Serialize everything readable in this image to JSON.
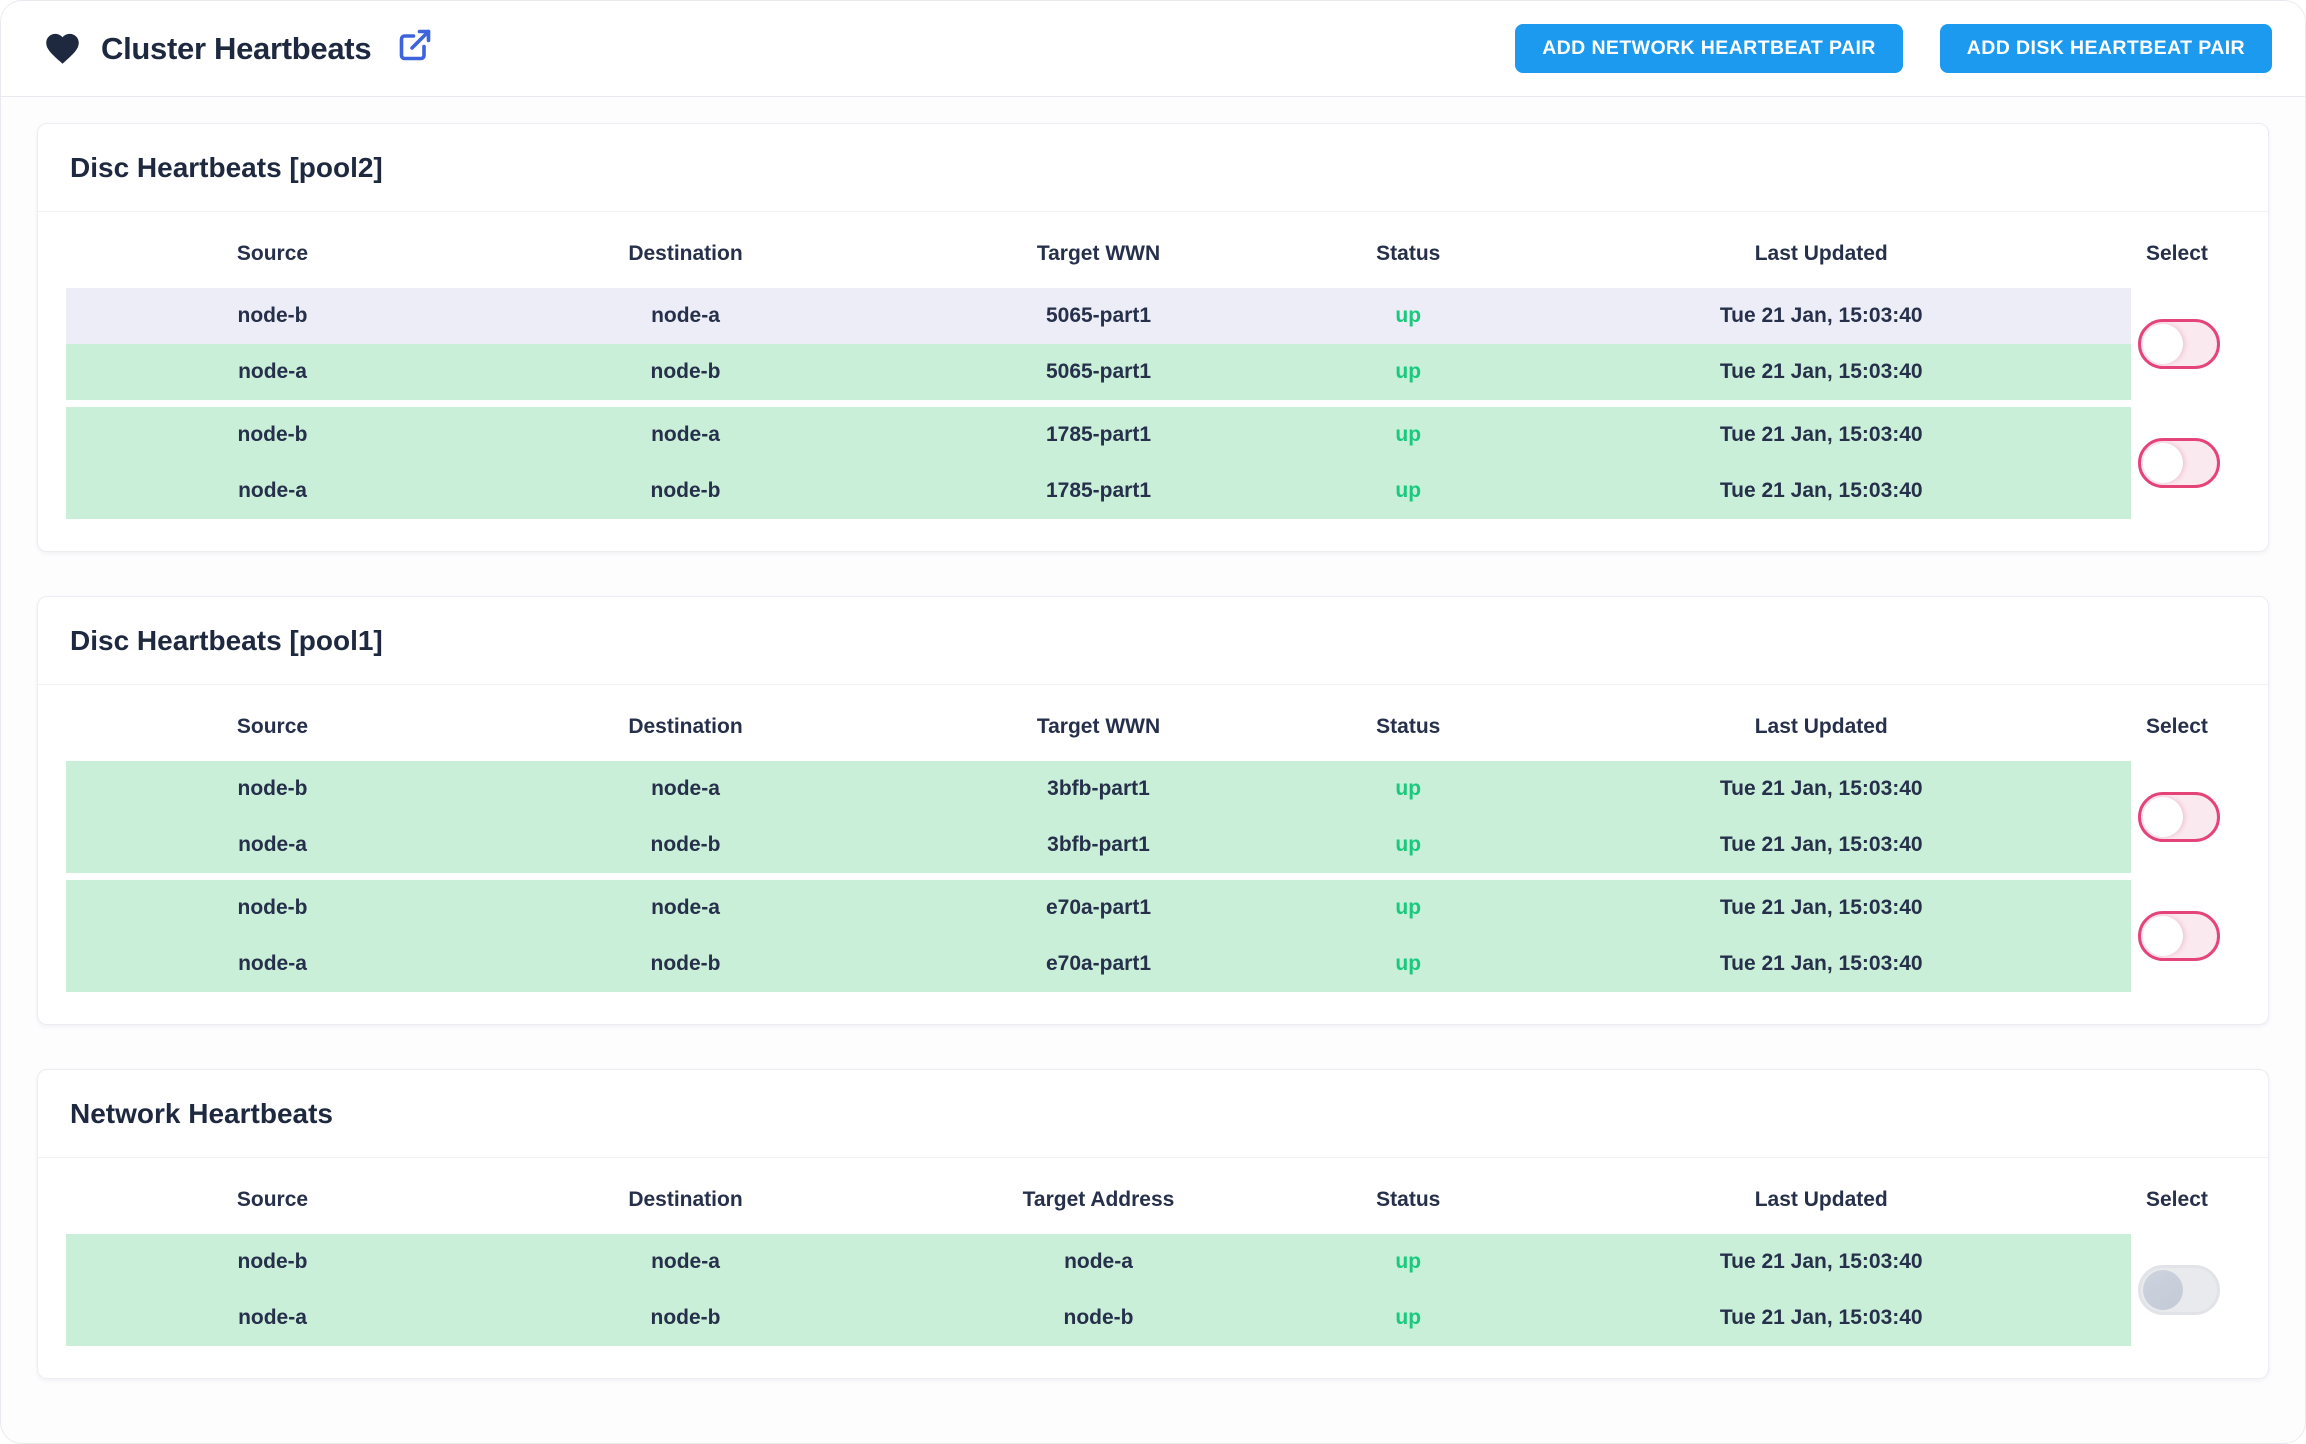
{
  "header": {
    "title": "Cluster Heartbeats",
    "add_network_button": "ADD NETWORK HEARTBEAT PAIR",
    "add_disk_button": "ADD DISK HEARTBEAT PAIR"
  },
  "colors": {
    "accent_blue": "#1b9af0",
    "external_link_blue": "#3d63dd",
    "heart_navy": "#1e2940",
    "text_navy": "#26304a",
    "row_green": "#c9efd9",
    "row_lavender": "#ecedf6",
    "status_up_green": "#19c97d",
    "toggle_pink": "#e54479",
    "toggle_pink_track": "#fbe9f0",
    "toggle_gray_track": "#e9eaee"
  },
  "cards": [
    {
      "title": "Disc Heartbeats [pool2]",
      "columns": [
        "Source",
        "Destination",
        "Target WWN",
        "Status",
        "Last Updated"
      ],
      "select_label": "Select",
      "groups": [
        {
          "toggle_variant": "pink",
          "toggle_state": "off",
          "rows": [
            {
              "source": "node-b",
              "destination": "node-a",
              "target": "5065-part1",
              "status": "up",
              "last_updated": "Tue 21 Jan, 15:03:40",
              "variant": "lavender"
            },
            {
              "source": "node-a",
              "destination": "node-b",
              "target": "5065-part1",
              "status": "up",
              "last_updated": "Tue 21 Jan, 15:03:40",
              "variant": "green"
            }
          ]
        },
        {
          "toggle_variant": "pink",
          "toggle_state": "off",
          "rows": [
            {
              "source": "node-b",
              "destination": "node-a",
              "target": "1785-part1",
              "status": "up",
              "last_updated": "Tue 21 Jan, 15:03:40",
              "variant": "green"
            },
            {
              "source": "node-a",
              "destination": "node-b",
              "target": "1785-part1",
              "status": "up",
              "last_updated": "Tue 21 Jan, 15:03:40",
              "variant": "green"
            }
          ]
        }
      ]
    },
    {
      "title": "Disc Heartbeats [pool1]",
      "columns": [
        "Source",
        "Destination",
        "Target WWN",
        "Status",
        "Last Updated"
      ],
      "select_label": "Select",
      "groups": [
        {
          "toggle_variant": "pink",
          "toggle_state": "off",
          "rows": [
            {
              "source": "node-b",
              "destination": "node-a",
              "target": "3bfb-part1",
              "status": "up",
              "last_updated": "Tue 21 Jan, 15:03:40",
              "variant": "green"
            },
            {
              "source": "node-a",
              "destination": "node-b",
              "target": "3bfb-part1",
              "status": "up",
              "last_updated": "Tue 21 Jan, 15:03:40",
              "variant": "green"
            }
          ]
        },
        {
          "toggle_variant": "pink",
          "toggle_state": "off",
          "rows": [
            {
              "source": "node-b",
              "destination": "node-a",
              "target": "e70a-part1",
              "status": "up",
              "last_updated": "Tue 21 Jan, 15:03:40",
              "variant": "green"
            },
            {
              "source": "node-a",
              "destination": "node-b",
              "target": "e70a-part1",
              "status": "up",
              "last_updated": "Tue 21 Jan, 15:03:40",
              "variant": "green"
            }
          ]
        }
      ]
    },
    {
      "title": "Network Heartbeats",
      "columns": [
        "Source",
        "Destination",
        "Target Address",
        "Status",
        "Last Updated"
      ],
      "select_label": "Select",
      "groups": [
        {
          "toggle_variant": "gray",
          "toggle_state": "off",
          "rows": [
            {
              "source": "node-b",
              "destination": "node-a",
              "target": "node-a",
              "status": "up",
              "last_updated": "Tue 21 Jan, 15:03:40",
              "variant": "green"
            },
            {
              "source": "node-a",
              "destination": "node-b",
              "target": "node-b",
              "status": "up",
              "last_updated": "Tue 21 Jan, 15:03:40",
              "variant": "green"
            }
          ]
        }
      ]
    }
  ]
}
